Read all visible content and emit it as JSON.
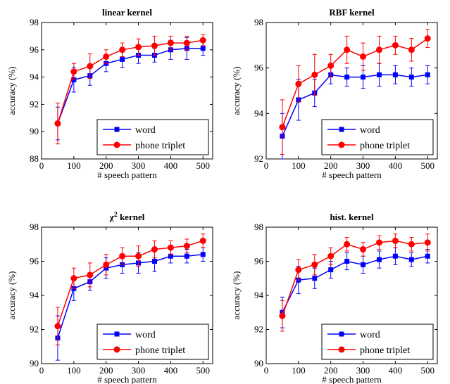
{
  "chart_data": [
    {
      "type": "line",
      "title": "linear kernel",
      "title_sup": "",
      "xlabel": "# speech pattern",
      "ylabel": "accuracy (%)",
      "xlim": [
        0,
        530
      ],
      "ylim": [
        88,
        98
      ],
      "xticks": [
        0,
        100,
        200,
        300,
        400,
        500
      ],
      "yticks": [
        88,
        90,
        92,
        94,
        96,
        98
      ],
      "legend_position": "bottom-right",
      "x": [
        50,
        100,
        150,
        200,
        250,
        300,
        350,
        400,
        450,
        500
      ],
      "series": [
        {
          "name": "word",
          "color": "#0000ff",
          "marker": "square",
          "values": [
            90.6,
            93.8,
            94.1,
            95.0,
            95.3,
            95.6,
            95.6,
            96.0,
            96.1,
            96.1
          ],
          "errors": [
            1.2,
            0.9,
            0.7,
            0.6,
            0.6,
            0.6,
            0.5,
            0.7,
            0.8,
            0.5
          ]
        },
        {
          "name": "phone triplet",
          "color": "#ff0000",
          "marker": "circle",
          "values": [
            90.6,
            94.4,
            94.8,
            95.5,
            96.0,
            96.2,
            96.3,
            96.5,
            96.5,
            96.7
          ],
          "errors": [
            1.5,
            0.6,
            0.9,
            0.5,
            0.5,
            0.6,
            0.7,
            0.5,
            0.5,
            0.4
          ]
        }
      ]
    },
    {
      "type": "line",
      "title": "RBF kernel",
      "title_sup": "",
      "xlabel": "# speech pattern",
      "ylabel": "accuracy (%)",
      "xlim": [
        0,
        530
      ],
      "ylim": [
        92,
        98
      ],
      "xticks": [
        0,
        100,
        200,
        300,
        400,
        500
      ],
      "yticks": [
        92,
        94,
        96,
        98
      ],
      "legend_position": "bottom-right",
      "x": [
        50,
        100,
        150,
        200,
        250,
        300,
        350,
        400,
        450,
        500
      ],
      "series": [
        {
          "name": "word",
          "color": "#0000ff",
          "marker": "square",
          "values": [
            93.0,
            94.6,
            94.9,
            95.7,
            95.6,
            95.6,
            95.7,
            95.7,
            95.6,
            95.7
          ],
          "errors": [
            1.0,
            0.9,
            0.6,
            0.4,
            0.4,
            0.5,
            0.5,
            0.4,
            0.4,
            0.4
          ]
        },
        {
          "name": "phone triplet",
          "color": "#ff0000",
          "marker": "circle",
          "values": [
            93.4,
            95.3,
            95.7,
            96.1,
            96.8,
            96.5,
            96.8,
            97.0,
            96.8,
            97.3
          ],
          "errors": [
            1.2,
            0.8,
            0.9,
            0.5,
            0.6,
            0.6,
            0.6,
            0.4,
            0.5,
            0.4
          ]
        }
      ]
    },
    {
      "type": "line",
      "title": "χ",
      "title_sup": "2",
      "title_suffix": " kernel",
      "xlabel": "# speech pattern",
      "ylabel": "accuracy (%)",
      "xlim": [
        0,
        530
      ],
      "ylim": [
        90,
        98
      ],
      "xticks": [
        0,
        100,
        200,
        300,
        400,
        500
      ],
      "yticks": [
        90,
        92,
        94,
        96,
        98
      ],
      "legend_position": "bottom-right",
      "x": [
        50,
        100,
        150,
        200,
        250,
        300,
        350,
        400,
        450,
        500
      ],
      "series": [
        {
          "name": "word",
          "color": "#0000ff",
          "marker": "square",
          "values": [
            91.5,
            94.4,
            94.8,
            95.6,
            95.8,
            95.9,
            96.0,
            96.3,
            96.3,
            96.4
          ],
          "errors": [
            1.3,
            0.7,
            0.5,
            0.6,
            0.5,
            0.6,
            0.6,
            0.4,
            0.4,
            0.4
          ]
        },
        {
          "name": "phone triplet",
          "color": "#ff0000",
          "marker": "circle",
          "values": [
            92.2,
            95.0,
            95.2,
            95.8,
            96.3,
            96.3,
            96.7,
            96.8,
            96.9,
            97.2
          ],
          "errors": [
            1.1,
            0.6,
            0.7,
            0.6,
            0.5,
            0.6,
            0.5,
            0.4,
            0.4,
            0.4
          ]
        }
      ]
    },
    {
      "type": "line",
      "title": "hist. kernel",
      "title_sup": "",
      "xlabel": "# speech pattern",
      "ylabel": "accuracy (%)",
      "xlim": [
        0,
        530
      ],
      "ylim": [
        90,
        98
      ],
      "xticks": [
        0,
        100,
        200,
        300,
        400,
        500
      ],
      "yticks": [
        90,
        92,
        94,
        96,
        98
      ],
      "legend_position": "bottom-right",
      "x": [
        50,
        100,
        150,
        200,
        250,
        300,
        350,
        400,
        450,
        500
      ],
      "series": [
        {
          "name": "word",
          "color": "#0000ff",
          "marker": "square",
          "values": [
            93.0,
            94.9,
            95.0,
            95.5,
            96.0,
            95.8,
            96.1,
            96.3,
            96.1,
            96.3
          ],
          "errors": [
            0.9,
            0.8,
            0.6,
            0.5,
            0.5,
            0.5,
            0.5,
            0.5,
            0.4,
            0.4
          ]
        },
        {
          "name": "phone triplet",
          "color": "#ff0000",
          "marker": "circle",
          "values": [
            92.8,
            95.5,
            95.8,
            96.3,
            97.0,
            96.7,
            97.1,
            97.2,
            97.0,
            97.1
          ],
          "errors": [
            0.9,
            0.6,
            0.6,
            0.5,
            0.4,
            0.4,
            0.4,
            0.4,
            0.4,
            0.5
          ]
        }
      ]
    }
  ]
}
